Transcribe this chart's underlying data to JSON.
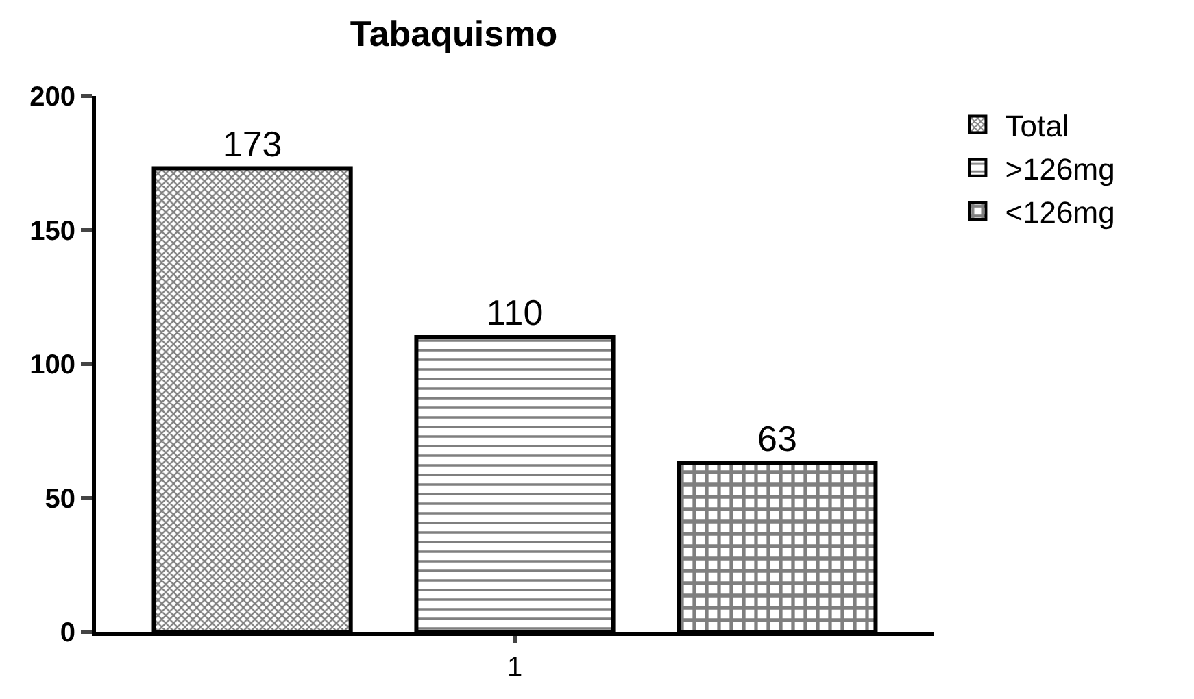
{
  "chart_data": {
    "type": "bar",
    "title": "Tabaquismo",
    "categories": [
      "1"
    ],
    "series": [
      {
        "name": "Total",
        "color": "#000000",
        "values": [
          173
        ]
      },
      {
        "name": ">126mg",
        "color": "#000000",
        "values": [
          110
        ]
      },
      {
        "name": "<126mg",
        "color": "#000000",
        "values": [
          63
        ]
      }
    ],
    "ylim": [
      0,
      200
    ],
    "yticks": [
      0,
      50,
      100,
      150,
      200
    ],
    "grid": false,
    "legend": "top right",
    "data_labels": true
  }
}
